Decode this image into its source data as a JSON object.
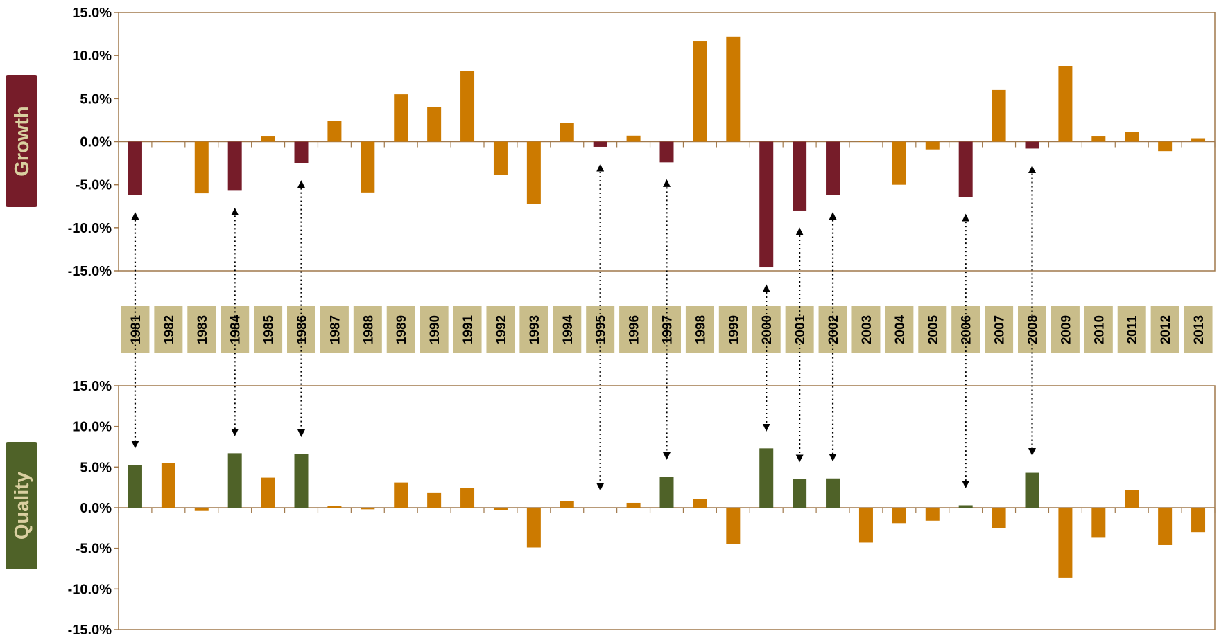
{
  "colors": {
    "orange": "#cc7a00",
    "growth_highlight": "#761c29",
    "quality_highlight": "#4f6228",
    "axis": "#a0784b",
    "year_box": "#c9bd8a",
    "side_label_text": "#d9cfa0"
  },
  "labels": {
    "growth": "Growth",
    "quality": "Quality"
  },
  "chart_data": [
    {
      "type": "bar",
      "name": "Growth",
      "categories": [
        "1981",
        "1982",
        "1983",
        "1984",
        "1985",
        "1986",
        "1987",
        "1988",
        "1989",
        "1990",
        "1991",
        "1992",
        "1993",
        "1994",
        "1995",
        "1996",
        "1997",
        "1998",
        "1999",
        "2000",
        "2001",
        "2002",
        "2003",
        "2004",
        "2005",
        "2006",
        "2007",
        "2008",
        "2009",
        "2010",
        "2011",
        "2012",
        "2013"
      ],
      "values": [
        -6.2,
        0.1,
        -6.0,
        -5.7,
        0.6,
        -2.5,
        2.4,
        -5.9,
        5.5,
        4.0,
        8.2,
        -3.9,
        -7.2,
        2.2,
        -0.6,
        0.7,
        -2.4,
        11.7,
        12.2,
        -14.6,
        -8.0,
        -6.2,
        0.1,
        -5.0,
        -0.9,
        -6.4,
        6.0,
        -0.8,
        8.8,
        0.6,
        1.1,
        -1.1,
        0.4
      ],
      "highlighted": [
        "1981",
        "1984",
        "1986",
        "1995",
        "1997",
        "2000",
        "2001",
        "2002",
        "2006",
        "2008"
      ],
      "ylim": [
        -15,
        15
      ],
      "yticks": [
        "15.0%",
        "10.0%",
        "5.0%",
        "0.0%",
        "-5.0%",
        "-10.0%",
        "-15.0%"
      ]
    },
    {
      "type": "bar",
      "name": "Quality",
      "categories": [
        "1981",
        "1982",
        "1983",
        "1984",
        "1985",
        "1986",
        "1987",
        "1988",
        "1989",
        "1990",
        "1991",
        "1992",
        "1993",
        "1994",
        "1995",
        "1996",
        "1997",
        "1998",
        "1999",
        "2000",
        "2001",
        "2002",
        "2003",
        "2004",
        "2005",
        "2006",
        "2007",
        "2008",
        "2009",
        "2010",
        "2011",
        "2012",
        "2013"
      ],
      "values": [
        5.2,
        5.5,
        -0.4,
        6.7,
        3.7,
        6.6,
        0.2,
        -0.2,
        3.1,
        1.8,
        2.4,
        -0.3,
        -4.9,
        0.8,
        0.0,
        0.6,
        3.8,
        1.1,
        -4.5,
        7.3,
        3.5,
        3.6,
        -4.3,
        -1.9,
        -1.6,
        0.3,
        -2.5,
        4.3,
        -8.6,
        -3.7,
        2.2,
        -4.6,
        -3.0
      ],
      "highlighted": [
        "1981",
        "1984",
        "1986",
        "1995",
        "1997",
        "2000",
        "2001",
        "2002",
        "2006",
        "2008"
      ],
      "ylim": [
        -15,
        15
      ],
      "yticks": [
        "15.0%",
        "10.0%",
        "5.0%",
        "0.0%",
        "-5.0%",
        "-10.0%",
        "-15.0%"
      ]
    }
  ]
}
